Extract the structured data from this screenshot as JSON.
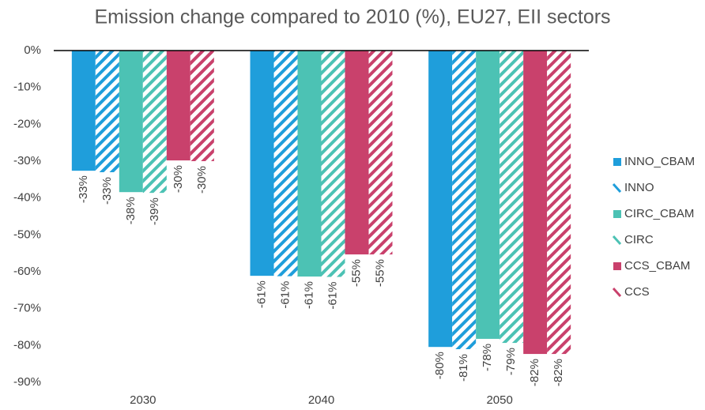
{
  "chart_data": {
    "type": "bar",
    "title": "Emission change compared to 2010 (%), EU27, EII sectors",
    "categories": [
      "2030",
      "2040",
      "2050"
    ],
    "series": [
      {
        "name": "INNO_CBAM",
        "color": "#1f9edb",
        "pattern": "solid",
        "values": [
          -32.6,
          -61.1,
          -80.4
        ],
        "value_labels": [
          "-33%",
          "-61%",
          "-80%"
        ]
      },
      {
        "name": "INNO",
        "color": "#1f9edb",
        "pattern": "hatch",
        "values": [
          -33,
          -61.2,
          -81
        ],
        "value_labels": [
          "-33%",
          "-61%",
          "-81%"
        ]
      },
      {
        "name": "CIRC_CBAM",
        "color": "#4cc2b4",
        "pattern": "solid",
        "values": [
          -38.4,
          -61.3,
          -78.2
        ],
        "value_labels": [
          "-38%",
          "-61%",
          "-78%"
        ]
      },
      {
        "name": "CIRC",
        "color": "#4cc2b4",
        "pattern": "hatch",
        "values": [
          -38.6,
          -61.4,
          -79.3
        ],
        "value_labels": [
          "-39%",
          "-61%",
          "-79%"
        ]
      },
      {
        "name": "CCS_CBAM",
        "color": "#c9416c",
        "pattern": "solid",
        "values": [
          -29.8,
          -55.3,
          -82.3
        ],
        "value_labels": [
          "-30%",
          "-55%",
          "-82%"
        ]
      },
      {
        "name": "CCS",
        "color": "#c9416c",
        "pattern": "hatch",
        "values": [
          -30,
          -55.3,
          -82.3
        ],
        "value_labels": [
          "-30%",
          "-55%",
          "-82%"
        ]
      }
    ],
    "ylim": [
      -90,
      0
    ],
    "yticks": [
      {
        "value": 0,
        "label": "0%"
      },
      {
        "value": -10,
        "label": "-10%"
      },
      {
        "value": -20,
        "label": "-20%"
      },
      {
        "value": -30,
        "label": "-30%"
      },
      {
        "value": -40,
        "label": "-40%"
      },
      {
        "value": -50,
        "label": "-50%"
      },
      {
        "value": -60,
        "label": "-60%"
      },
      {
        "value": -70,
        "label": "-70%"
      },
      {
        "value": -80,
        "label": "-80%"
      },
      {
        "value": -90,
        "label": "-90%"
      }
    ],
    "grid": false,
    "legend": "right"
  }
}
